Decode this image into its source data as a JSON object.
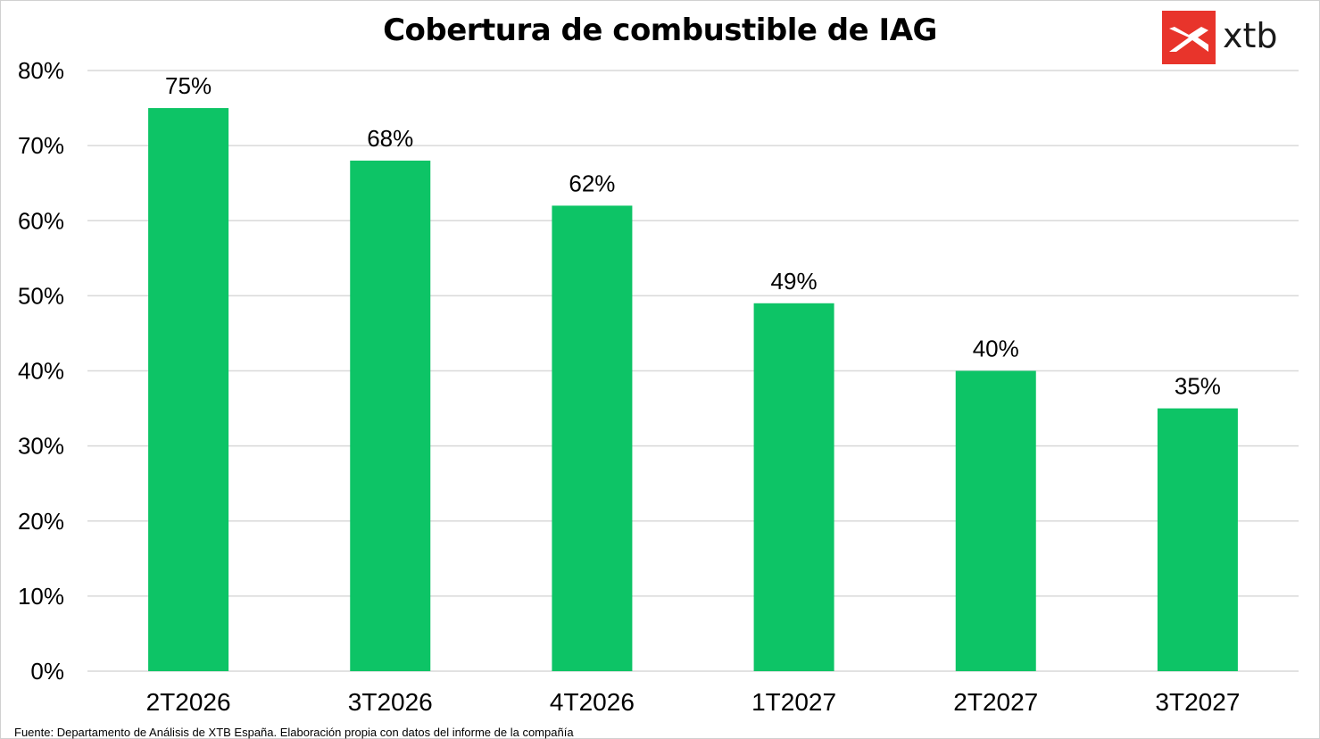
{
  "brand": {
    "name": "xtb",
    "accent": "#E8342B"
  },
  "colors": {
    "bar": "#0DC466",
    "grid": "#D9D9D9"
  },
  "source": "Fuente: Departamento de Análisis de XTB España. Elaboración propia con datos del informe  de la compañía",
  "chart_data": {
    "type": "bar",
    "title": "Cobertura de combustible de IAG",
    "xlabel": "",
    "ylabel": "",
    "categories": [
      "2T2026",
      "3T2026",
      "4T2026",
      "1T2027",
      "2T2027",
      "3T2027"
    ],
    "values": [
      75,
      68,
      62,
      49,
      40,
      35
    ],
    "data_labels": [
      "75%",
      "68%",
      "62%",
      "49%",
      "40%",
      "35%"
    ],
    "ylim": [
      0,
      80
    ],
    "yticks": [
      0,
      10,
      20,
      30,
      40,
      50,
      60,
      70,
      80
    ],
    "ytick_labels": [
      "0%",
      "10%",
      "20%",
      "30%",
      "40%",
      "50%",
      "60%",
      "70%",
      "80%"
    ],
    "grid": true,
    "legend": "none"
  }
}
